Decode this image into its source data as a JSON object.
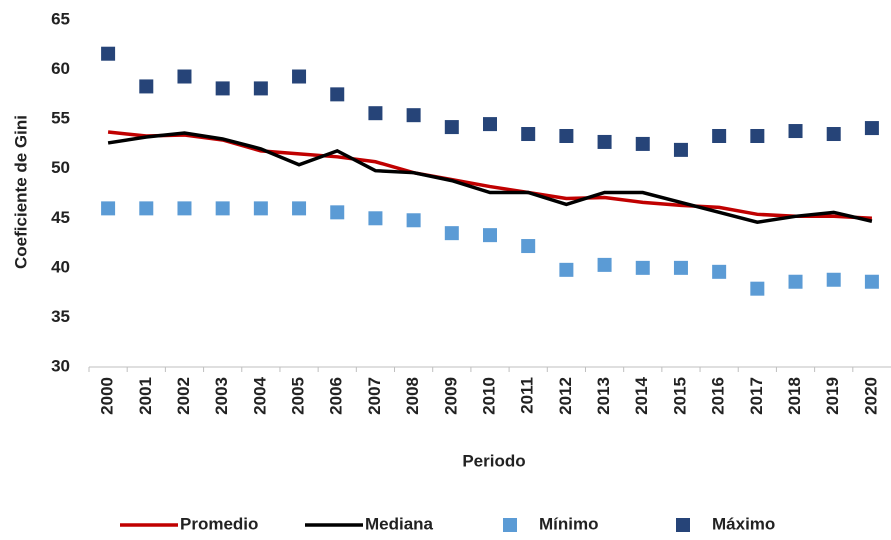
{
  "chart_data": {
    "type": "line",
    "y_label": "Coeficiente de Gini",
    "x_label": "Periodo",
    "categories": [
      "2000",
      "2001",
      "2002",
      "2003",
      "2004",
      "2005",
      "2006",
      "2007",
      "2008",
      "2009",
      "2010",
      "2011",
      "2012",
      "2013",
      "2014",
      "2015",
      "2016",
      "2017",
      "2018",
      "2019",
      "2020"
    ],
    "series": [
      {
        "name": "Promedio",
        "color": "#c00000",
        "style": "line",
        "values": [
          53.7,
          53.3,
          53.4,
          52.9,
          51.8,
          51.5,
          51.2,
          50.7,
          49.6,
          48.9,
          48.2,
          47.6,
          47.0,
          47.1,
          46.6,
          46.3,
          46.1,
          45.4,
          45.2,
          45.2,
          45.0
        ]
      },
      {
        "name": "Mediana",
        "color": "#000000",
        "style": "line",
        "values": [
          52.6,
          53.2,
          53.6,
          53.0,
          52.0,
          50.4,
          51.8,
          49.8,
          49.6,
          48.8,
          47.6,
          47.6,
          46.4,
          47.6,
          47.6,
          46.6,
          45.6,
          44.6,
          45.2,
          45.6,
          44.7
        ]
      },
      {
        "name": "Mínimo",
        "color": "#5b9bd5",
        "style": "square",
        "values": [
          46.0,
          46.0,
          46.0,
          46.0,
          46.0,
          46.0,
          45.6,
          45.0,
          44.8,
          43.5,
          43.3,
          42.2,
          39.8,
          40.3,
          40.0,
          40.0,
          39.6,
          37.9,
          38.6,
          38.8,
          38.6
        ]
      },
      {
        "name": "Máximo",
        "color": "#264478",
        "style": "square",
        "values": [
          61.6,
          58.3,
          59.3,
          58.1,
          58.1,
          59.3,
          57.5,
          55.6,
          55.4,
          54.2,
          54.5,
          53.5,
          53.3,
          52.7,
          52.5,
          51.9,
          53.3,
          53.3,
          53.8,
          53.5,
          54.1
        ]
      }
    ],
    "ylim": [
      30,
      65
    ],
    "yticks": [
      30,
      35,
      40,
      45,
      50,
      55,
      60,
      65
    ]
  }
}
